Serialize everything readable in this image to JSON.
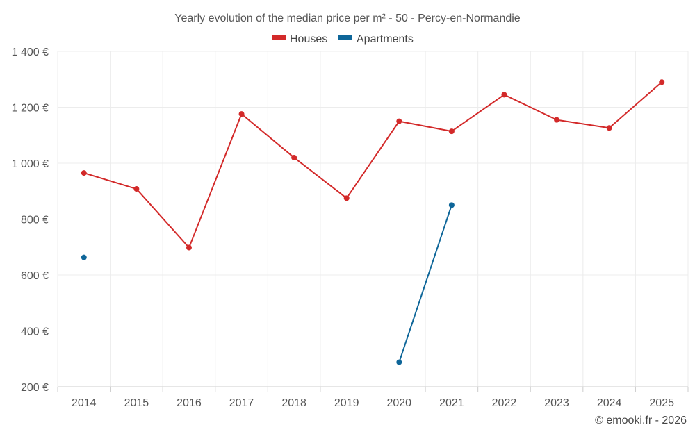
{
  "chart_data": {
    "type": "line",
    "title": "Yearly evolution of the median price per m² - 50 - Percy-en-Normandie",
    "categories": [
      "2014",
      "2015",
      "2016",
      "2017",
      "2018",
      "2019",
      "2020",
      "2021",
      "2022",
      "2023",
      "2024",
      "2025"
    ],
    "series": [
      {
        "name": "Houses",
        "color": "#d32a2a",
        "values": [
          965,
          908,
          698,
          1176,
          1020,
          875,
          1150,
          1114,
          1245,
          1155,
          1126,
          1290
        ]
      },
      {
        "name": "Apartments",
        "color": "#0e6699",
        "values": [
          663,
          null,
          null,
          null,
          null,
          null,
          288,
          850,
          null,
          null,
          null,
          null
        ]
      }
    ],
    "ylim": [
      200,
      1400
    ],
    "yticks": [
      200,
      400,
      600,
      800,
      1000,
      1200,
      1400
    ],
    "ytick_labels": [
      "200 €",
      "400 €",
      "600 €",
      "800 €",
      "1 000 €",
      "1 200 €",
      "1 400 €"
    ],
    "xlabel": "",
    "ylabel": "",
    "grid": true,
    "legend_position": "top-center"
  },
  "credit": "© emooki.fr - 2026"
}
